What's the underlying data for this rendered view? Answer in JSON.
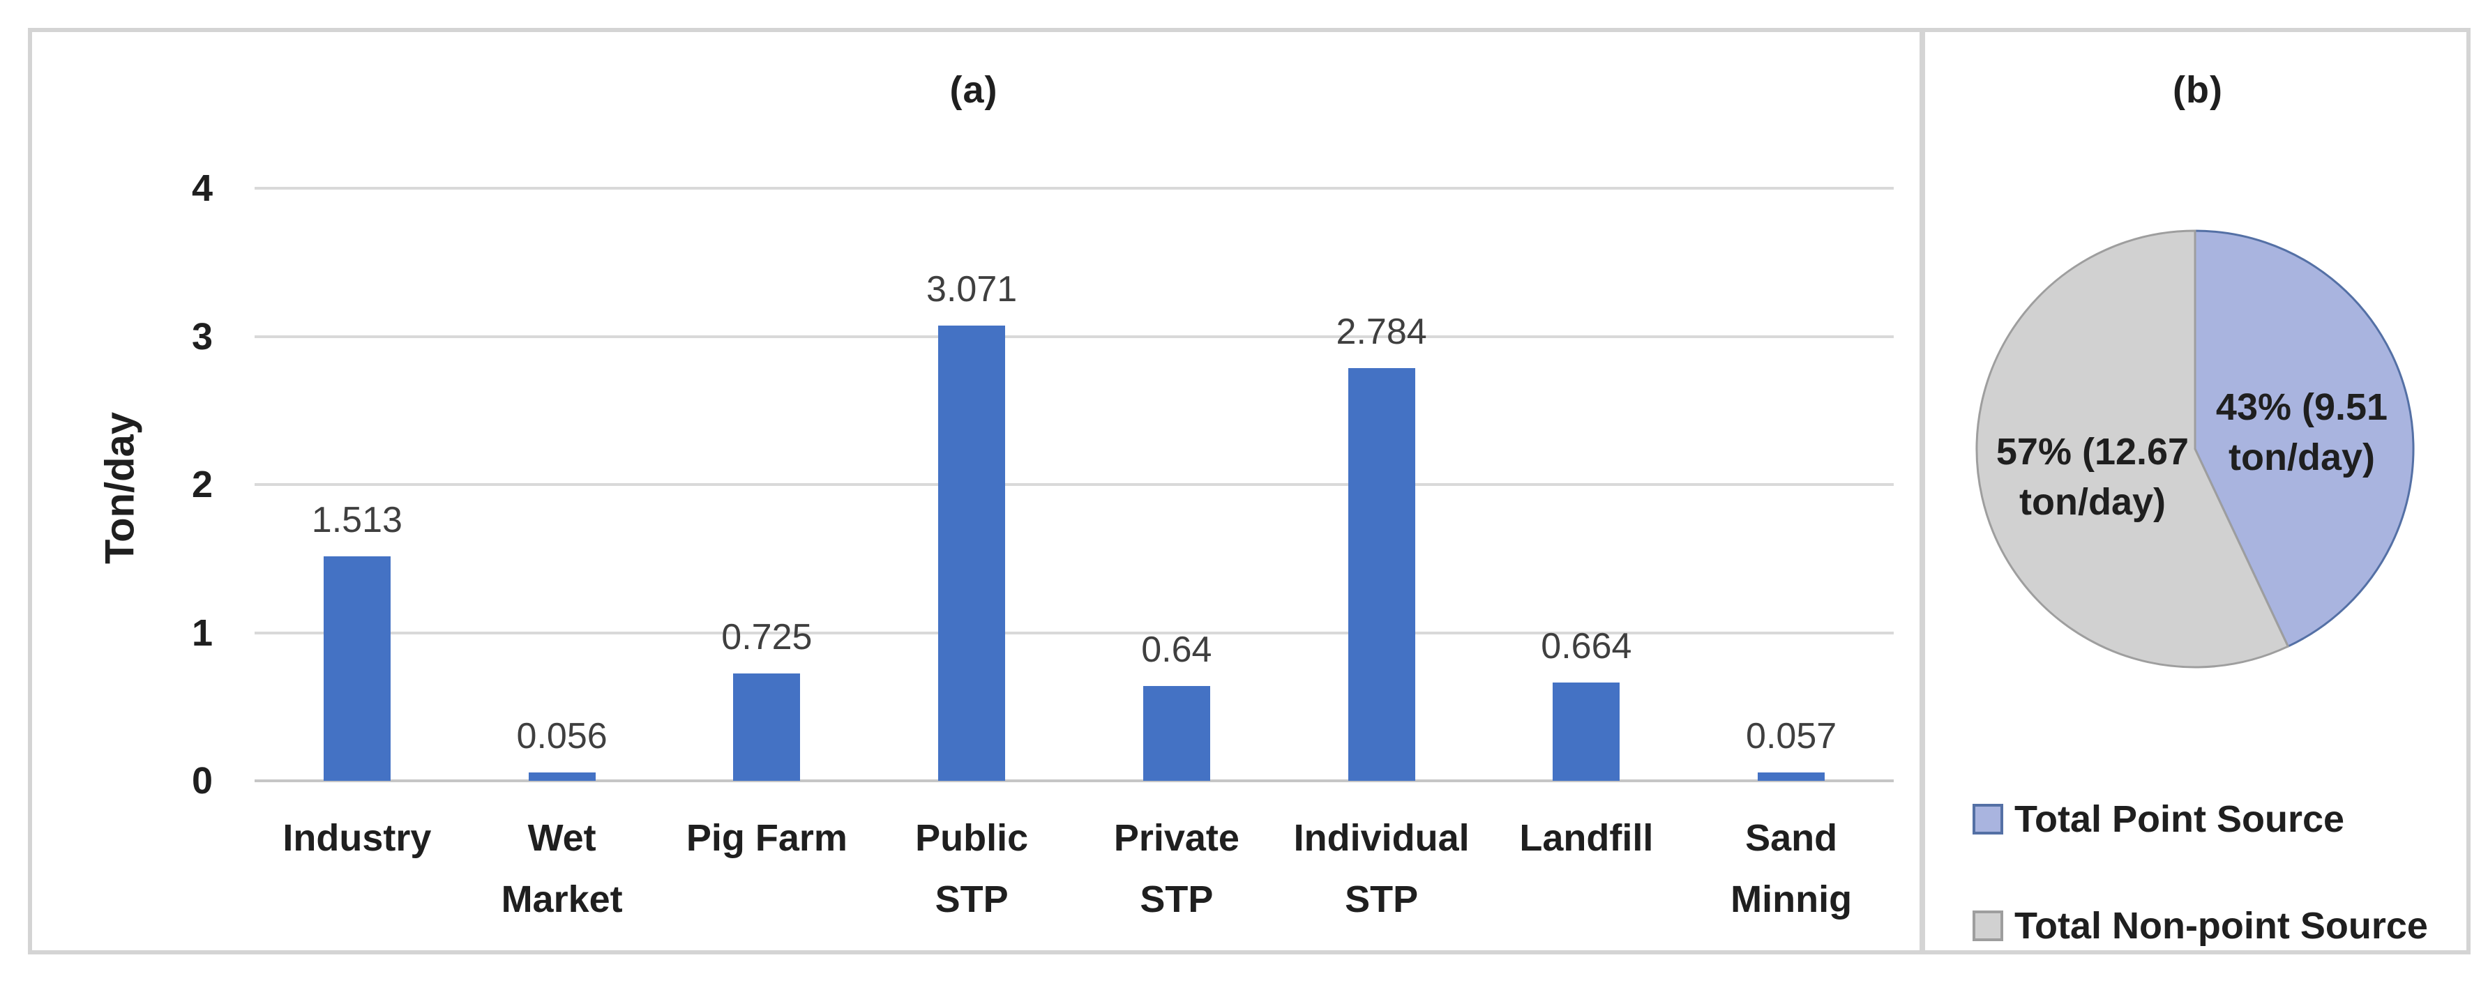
{
  "chart_data": [
    {
      "type": "bar",
      "panel": "a",
      "title": "(a)",
      "ylabel": "Ton/day",
      "ylim": [
        0,
        4
      ],
      "y_ticks": [
        0,
        1,
        2,
        3,
        4
      ],
      "grid": true,
      "bar_color": "#4472c4",
      "categories": [
        "Industry",
        "Wet Market",
        "Pig Farm",
        "Public STP",
        "Private STP",
        "Individual STP",
        "Landfill",
        "Sand Minnig"
      ],
      "display_categories": [
        "Industry",
        "Wet\nMarket",
        "Pig Farm",
        "Public\nSTP",
        "Private\nSTP",
        "Individual\nSTP",
        "Landfill",
        "Sand\nMinnig"
      ],
      "values": [
        1.513,
        0.056,
        0.725,
        3.071,
        0.64,
        2.784,
        0.664,
        0.057
      ],
      "value_labels": [
        "1.513",
        "0.056",
        "0.725",
        "3.071",
        "0.64",
        "2.784",
        "0.664",
        "0.057"
      ]
    },
    {
      "type": "pie",
      "panel": "b",
      "title": "(b)",
      "start_angle_deg": 0,
      "direction": "clockwise",
      "legend_position": "bottom-left",
      "slices": [
        {
          "label": "Total Point Source",
          "percent": 43,
          "value": 9.51,
          "unit": "ton/day",
          "data_label": "43% (9.51\nton/day)",
          "fill": "#a9b4df",
          "stroke": "#5470a5"
        },
        {
          "label": "Total Non-point Source",
          "percent": 57,
          "value": 12.67,
          "unit": "ton/day",
          "data_label": "57% (12.67\nton/day)",
          "fill": "#d1d1d1",
          "stroke": "#9e9e9e"
        }
      ]
    }
  ]
}
